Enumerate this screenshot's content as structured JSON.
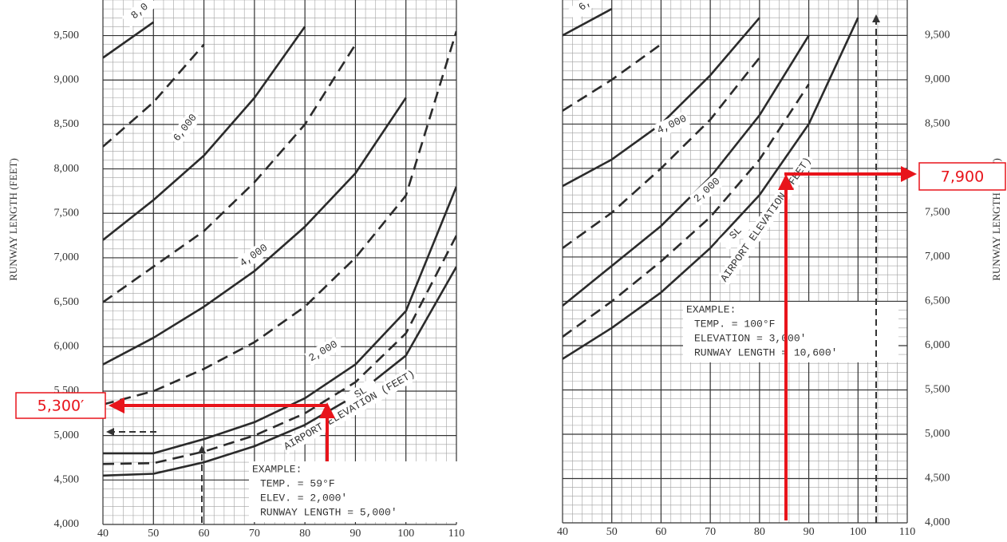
{
  "chart_data": [
    {
      "type": "line",
      "y_label": "RUNWAY LENGTH (FEET)",
      "grid": true,
      "x": [
        40,
        50,
        60,
        70,
        80,
        90,
        100,
        110
      ],
      "xlim": [
        40,
        110
      ],
      "xticks": [
        40,
        50,
        60,
        70,
        80,
        90,
        100,
        110
      ],
      "ylim": [
        4000,
        9900
      ],
      "yticks": [
        {
          "value": 4000,
          "label": "4,000"
        },
        {
          "value": 4500,
          "label": "4,500"
        },
        {
          "value": 5000,
          "label": "5,000"
        },
        {
          "value": 5500,
          "label": "5,500"
        },
        {
          "value": 6000,
          "label": "6,000"
        },
        {
          "value": 6500,
          "label": "6,500"
        },
        {
          "value": 7000,
          "label": "7,000"
        },
        {
          "value": 7500,
          "label": "7,500"
        },
        {
          "value": 8000,
          "label": "8,000"
        },
        {
          "value": 8500,
          "label": "8,500"
        },
        {
          "value": 9000,
          "label": "9,000"
        },
        {
          "value": 9500,
          "label": "9,500"
        }
      ],
      "series": [
        {
          "name": "SL",
          "color": "#2b2b2b",
          "style": "solid",
          "values": [
            4550,
            4570,
            4700,
            4880,
            5120,
            5450,
            5900,
            6900
          ]
        },
        {
          "color": "#2b2b2b",
          "style": "dashed",
          "values": [
            4680,
            4690,
            4820,
            5000,
            5250,
            5600,
            6150,
            7250
          ]
        },
        {
          "name": "2,000",
          "color": "#2b2b2b",
          "style": "solid",
          "values": [
            4800,
            4800,
            4960,
            5150,
            5420,
            5800,
            6400,
            7800
          ]
        },
        {
          "color": "#2b2b2b",
          "style": "dashed",
          "values": [
            5350,
            5500,
            5750,
            6050,
            6450,
            7000,
            7700,
            9550
          ]
        },
        {
          "name": "4,000",
          "color": "#2b2b2b",
          "style": "solid",
          "values": [
            5800,
            6100,
            6450,
            6850,
            7350,
            7950,
            8800,
            null
          ]
        },
        {
          "color": "#2b2b2b",
          "style": "dashed",
          "values": [
            6500,
            6900,
            7300,
            7850,
            8500,
            9400,
            null,
            null
          ]
        },
        {
          "name": "6,000",
          "color": "#2b2b2b",
          "style": "solid",
          "values": [
            7200,
            7650,
            8150,
            8800,
            9600,
            null,
            null,
            null
          ]
        },
        {
          "color": "#2b2b2b",
          "style": "dashed",
          "values": [
            8250,
            8750,
            9400,
            null,
            null,
            null,
            null,
            null
          ]
        },
        {
          "name": "8,0",
          "color": "#2b2b2b",
          "style": "solid",
          "values": [
            9250,
            9650,
            null,
            null,
            null,
            null,
            null,
            null
          ]
        }
      ],
      "curve_title": "AIRPORT ELEVATION (FEET)",
      "example": [
        "EXAMPLE:",
        "TEMP. = 59°F",
        "ELEV. = 2,000'",
        "RUNWAY LENGTH = 5,000'"
      ],
      "callout": "5,300′"
    },
    {
      "type": "line",
      "y_label": "RUNWAY LENGTH (FEET)",
      "grid": true,
      "x": [
        40,
        50,
        60,
        70,
        80,
        90,
        100,
        110
      ],
      "xlim": [
        40,
        110
      ],
      "xticks": [
        40,
        50,
        60,
        70,
        80,
        90,
        100,
        110
      ],
      "ylim": [
        4000,
        9900
      ],
      "yticks": [
        {
          "value": 4000,
          "label": "4,000"
        },
        {
          "value": 4500,
          "label": "4,500"
        },
        {
          "value": 5000,
          "label": "5,000"
        },
        {
          "value": 5500,
          "label": "5,500"
        },
        {
          "value": 6000,
          "label": "6,000"
        },
        {
          "value": 6500,
          "label": "6,500"
        },
        {
          "value": 7000,
          "label": "7,000"
        },
        {
          "value": 7500,
          "label": "7,500"
        },
        {
          "value": 8000,
          "label": "8,000"
        },
        {
          "value": 8500,
          "label": "8,500"
        },
        {
          "value": 9000,
          "label": "9,000"
        },
        {
          "value": 9500,
          "label": "9,500"
        }
      ],
      "series": [
        {
          "name": "SL",
          "color": "#2b2b2b",
          "style": "solid",
          "values": [
            5850,
            6200,
            6600,
            7100,
            7700,
            8500,
            9700,
            null
          ]
        },
        {
          "color": "#2b2b2b",
          "style": "dashed",
          "values": [
            6100,
            6500,
            6950,
            7450,
            8100,
            8950,
            null,
            null
          ]
        },
        {
          "name": "2,000",
          "color": "#2b2b2b",
          "style": "solid",
          "values": [
            6450,
            6900,
            7350,
            7900,
            8600,
            9500,
            null,
            null
          ]
        },
        {
          "color": "#2b2b2b",
          "style": "dashed",
          "values": [
            7100,
            7500,
            8000,
            8550,
            9250,
            null,
            null,
            null
          ]
        },
        {
          "name": "4,000",
          "color": "#2b2b2b",
          "style": "solid",
          "values": [
            7800,
            8100,
            8500,
            9050,
            9700,
            null,
            null,
            null
          ]
        },
        {
          "color": "#2b2b2b",
          "style": "dashed",
          "values": [
            8650,
            9000,
            9400,
            null,
            null,
            null,
            null,
            null
          ]
        },
        {
          "name": "6,",
          "color": "#2b2b2b",
          "style": "solid",
          "values": [
            9500,
            9800,
            null,
            null,
            null,
            null,
            null,
            null
          ]
        }
      ],
      "curve_title": "AIRPORT ELEVATION (FEET)",
      "example": [
        "EXAMPLE:",
        "TEMP. = 100°F",
        "ELEVATION = 3,000'",
        "RUNWAY LENGTH = 10,600'"
      ],
      "callout": "7,900"
    }
  ]
}
